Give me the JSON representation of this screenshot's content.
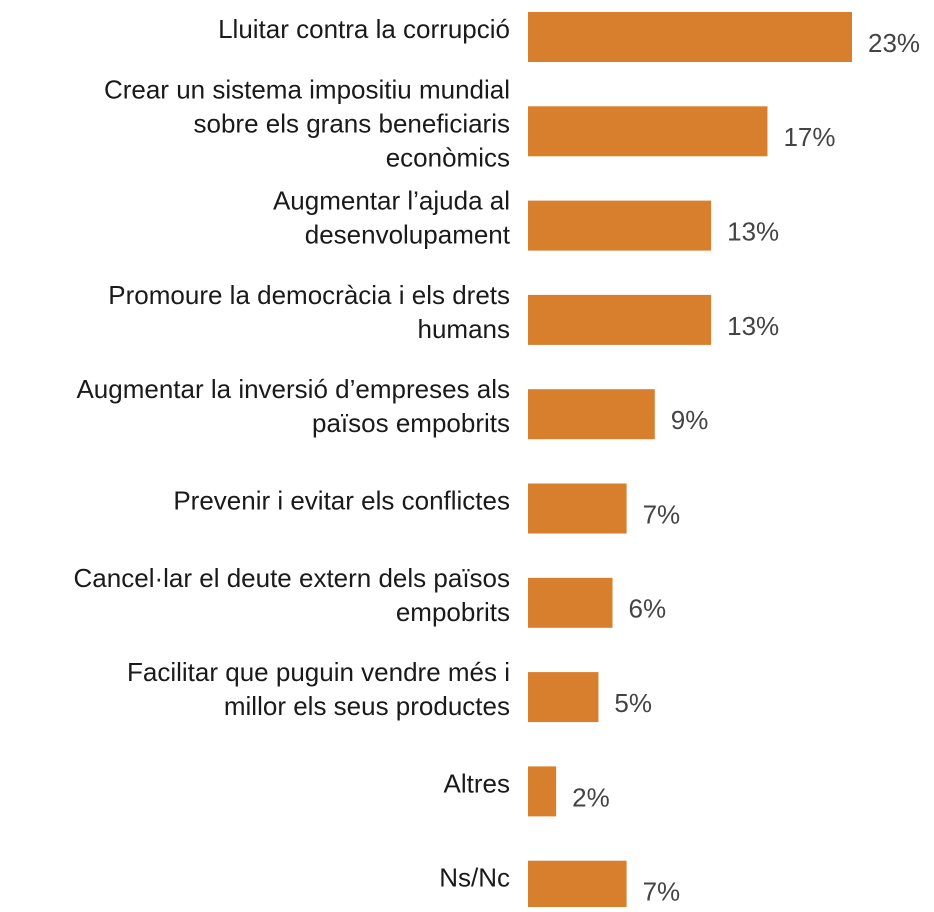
{
  "chart_data": {
    "type": "bar",
    "orientation": "horizontal",
    "color": "#d87f2e",
    "categories": [
      "Lluitar contra la corrupció",
      "Crear un sistema impositiu mundial\nsobre els grans beneficiaris\neconòmics",
      "Augmentar l’ajuda al\ndesenvolupament",
      "Promoure la democràcia i els drets\nhumans",
      "Augmentar la inversió d’empreses als\npaïsos empobrits",
      "Prevenir i evitar els conflictes",
      "Cancel·lar el deute extern dels països\nempobrits",
      "Facilitar que puguin vendre més i\nmillor els seus productes",
      "Altres",
      "Ns/Nc"
    ],
    "values": [
      23,
      17,
      13,
      13,
      9,
      7,
      6,
      5,
      2,
      7
    ],
    "value_labels": [
      "23%",
      "17%",
      "13%",
      "13%",
      "9%",
      "7%",
      "6%",
      "5%",
      "2%",
      "7%"
    ]
  }
}
